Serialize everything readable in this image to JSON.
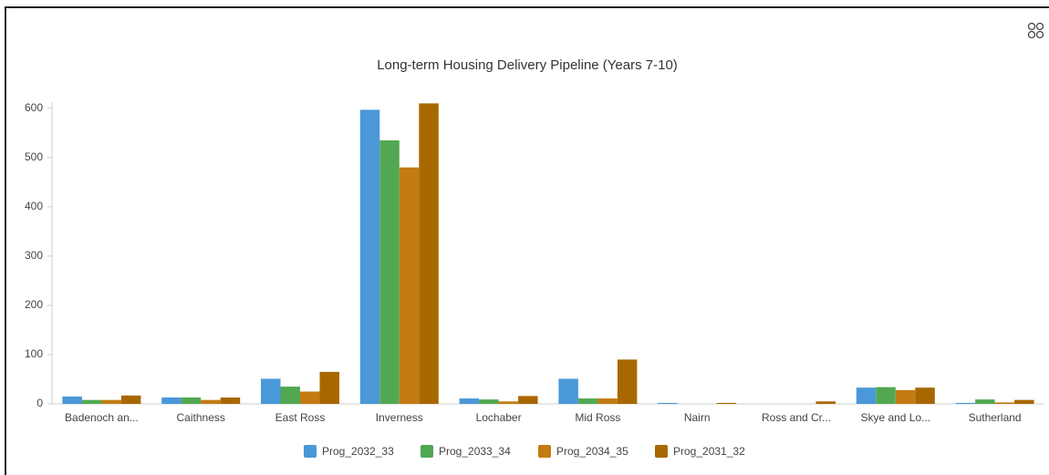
{
  "chart_data": {
    "type": "bar",
    "title": "Long-term Housing Delivery Pipeline (Years 7-10)",
    "categories": [
      "Badenoch an...",
      "Caithness",
      "East Ross",
      "Inverness",
      "Lochaber",
      "Mid Ross",
      "Nairn",
      "Ross and Cr...",
      "Skye and Lo...",
      "Sutherland"
    ],
    "series": [
      {
        "name": "Prog_2032_33",
        "color": "#4a98d8",
        "values": [
          15,
          13,
          51,
          597,
          11,
          51,
          2,
          0,
          33,
          2
        ]
      },
      {
        "name": "Prog_2033_34",
        "color": "#52a852",
        "values": [
          8,
          13,
          35,
          535,
          9,
          11,
          0,
          0,
          34,
          9
        ]
      },
      {
        "name": "Prog_2034_35",
        "color": "#c37b12",
        "values": [
          8,
          8,
          25,
          480,
          5,
          11,
          0,
          0,
          28,
          3
        ]
      },
      {
        "name": "Prog_2031_32",
        "color": "#a86800",
        "values": [
          17,
          13,
          65,
          610,
          16,
          90,
          2,
          5,
          33,
          8
        ]
      }
    ],
    "ylim": [
      0,
      620
    ],
    "yticks": [
      0,
      100,
      200,
      300,
      400,
      500,
      600
    ],
    "grid": false
  }
}
